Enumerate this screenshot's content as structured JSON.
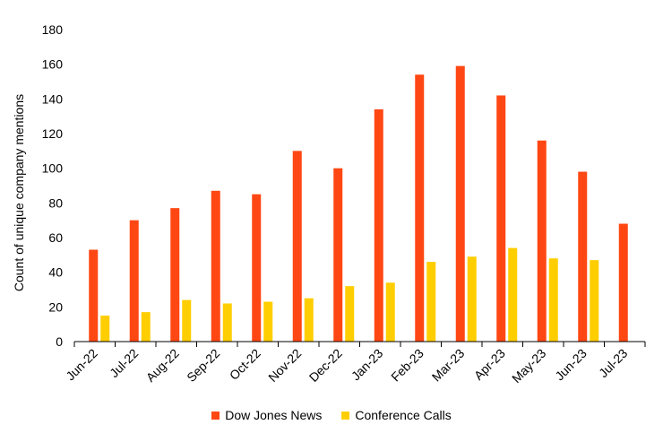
{
  "chart_data": {
    "type": "bar",
    "ylabel": "Count of unique company mentions",
    "xlabel": "",
    "ylim": [
      0,
      180
    ],
    "yticks": [
      0,
      20,
      40,
      60,
      80,
      100,
      120,
      140,
      160,
      180
    ],
    "grid": false,
    "legend_position": "bottom",
    "categories": [
      "Jun-22",
      "Jul-22",
      "Aug-22",
      "Sep-22",
      "Oct-22",
      "Nov-22",
      "Dec-22",
      "Jan-23",
      "Feb-23",
      "Mar-23",
      "Apr-23",
      "May-23",
      "Jun-23",
      "Jul-23"
    ],
    "series": [
      {
        "name": "Dow Jones News",
        "color": "#ff4713",
        "values": [
          53,
          70,
          77,
          87,
          85,
          110,
          100,
          134,
          154,
          159,
          142,
          116,
          98,
          68
        ]
      },
      {
        "name": "Conference Calls",
        "color": "#ffce00",
        "values": [
          15,
          17,
          24,
          22,
          23,
          25,
          32,
          34,
          46,
          49,
          54,
          48,
          47,
          null
        ]
      }
    ]
  }
}
